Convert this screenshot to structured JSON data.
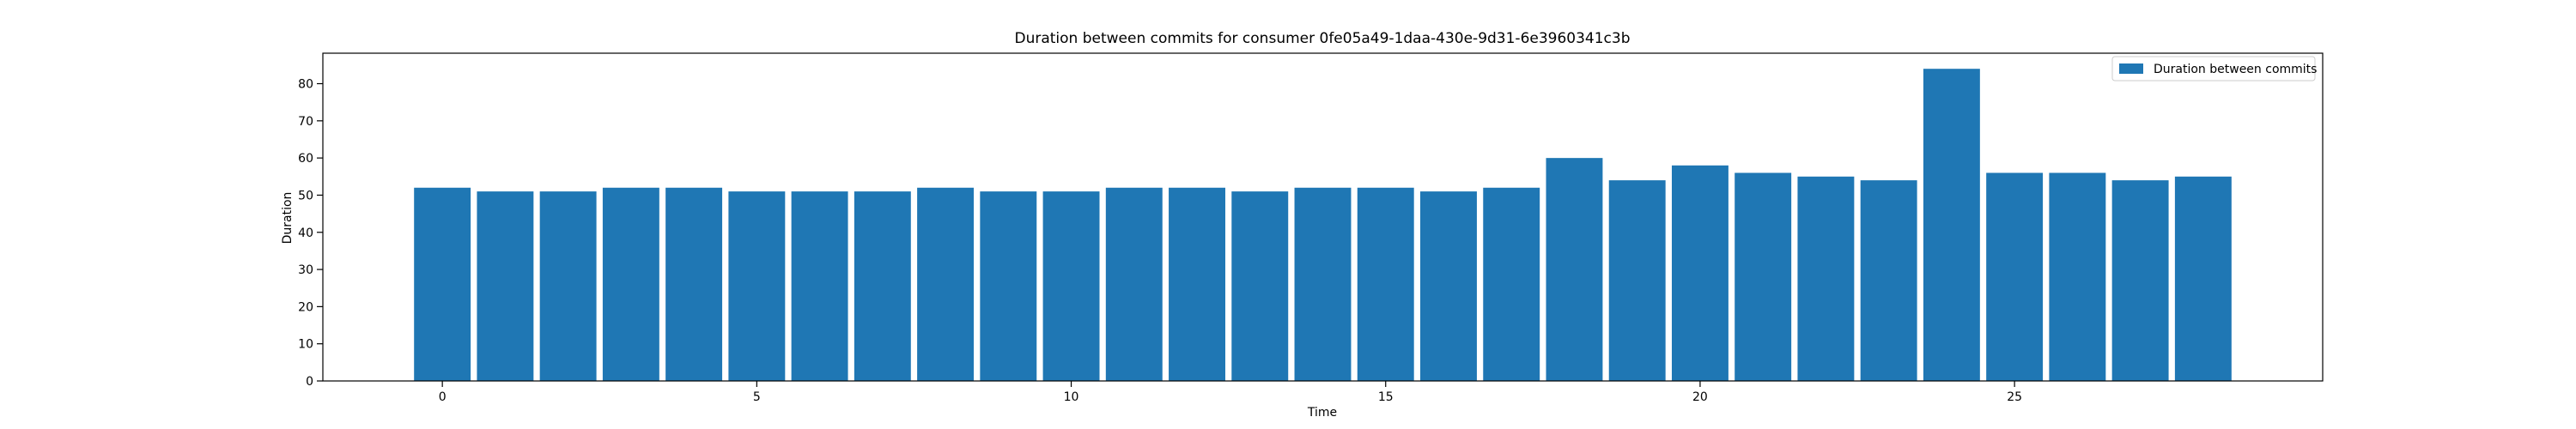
{
  "chart_data": {
    "type": "bar",
    "title": "Duration between commits for consumer 0fe05a49-1daa-430e-9d31-6e3960341c3b",
    "xlabel": "Time",
    "ylabel": "Duration",
    "legend": {
      "position": "top-right",
      "entries": [
        "Duration between commits"
      ]
    },
    "x": [
      0,
      1,
      2,
      3,
      4,
      5,
      6,
      7,
      8,
      9,
      10,
      11,
      12,
      13,
      14,
      15,
      16,
      17,
      18,
      19,
      20,
      21,
      22,
      23,
      24,
      25,
      26,
      27,
      28
    ],
    "series": [
      {
        "name": "Duration between commits",
        "color": "#1f77b4",
        "values": [
          52,
          51,
          51,
          52,
          52,
          51,
          51,
          51,
          52,
          51,
          51,
          52,
          52,
          51,
          52,
          52,
          51,
          52,
          60,
          54,
          58,
          56,
          55,
          54,
          84,
          56,
          56,
          54,
          55
        ]
      }
    ],
    "xlim": [
      -1.9,
      29.9
    ],
    "ylim": [
      0,
      88.2
    ],
    "xticks": [
      0,
      5,
      10,
      15,
      20,
      25
    ],
    "yticks": [
      0,
      10,
      20,
      30,
      40,
      50,
      60,
      70,
      80
    ],
    "grid": false
  }
}
